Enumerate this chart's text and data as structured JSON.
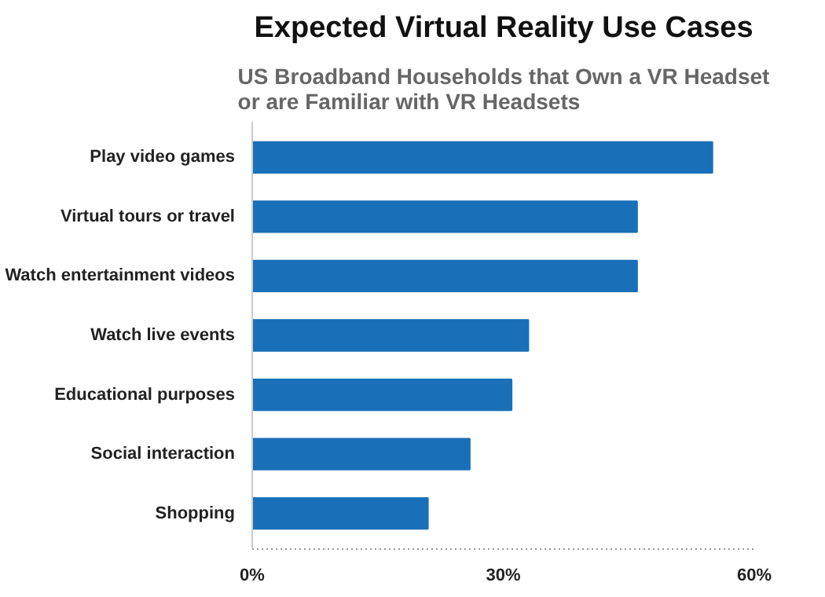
{
  "chart_data": {
    "type": "bar",
    "orientation": "horizontal",
    "title": "Expected Virtual Reality Use Cases",
    "subtitle": "US Broadband Households that Own a VR Headset\nor are Familiar with VR Headsets",
    "categories": [
      "Play video games",
      "Virtual tours or travel",
      "Watch entertainment videos",
      "Watch live events",
      "Educational purposes",
      "Social interaction",
      "Shopping"
    ],
    "values": [
      55,
      46,
      46,
      33,
      31,
      26,
      21
    ],
    "color": "#1a70b8",
    "xlim": [
      0,
      60
    ],
    "xticks": [
      {
        "value": 0,
        "label": "0%"
      },
      {
        "value": 30,
        "label": "30%"
      },
      {
        "value": 60,
        "label": "60%"
      }
    ],
    "grid": false
  }
}
